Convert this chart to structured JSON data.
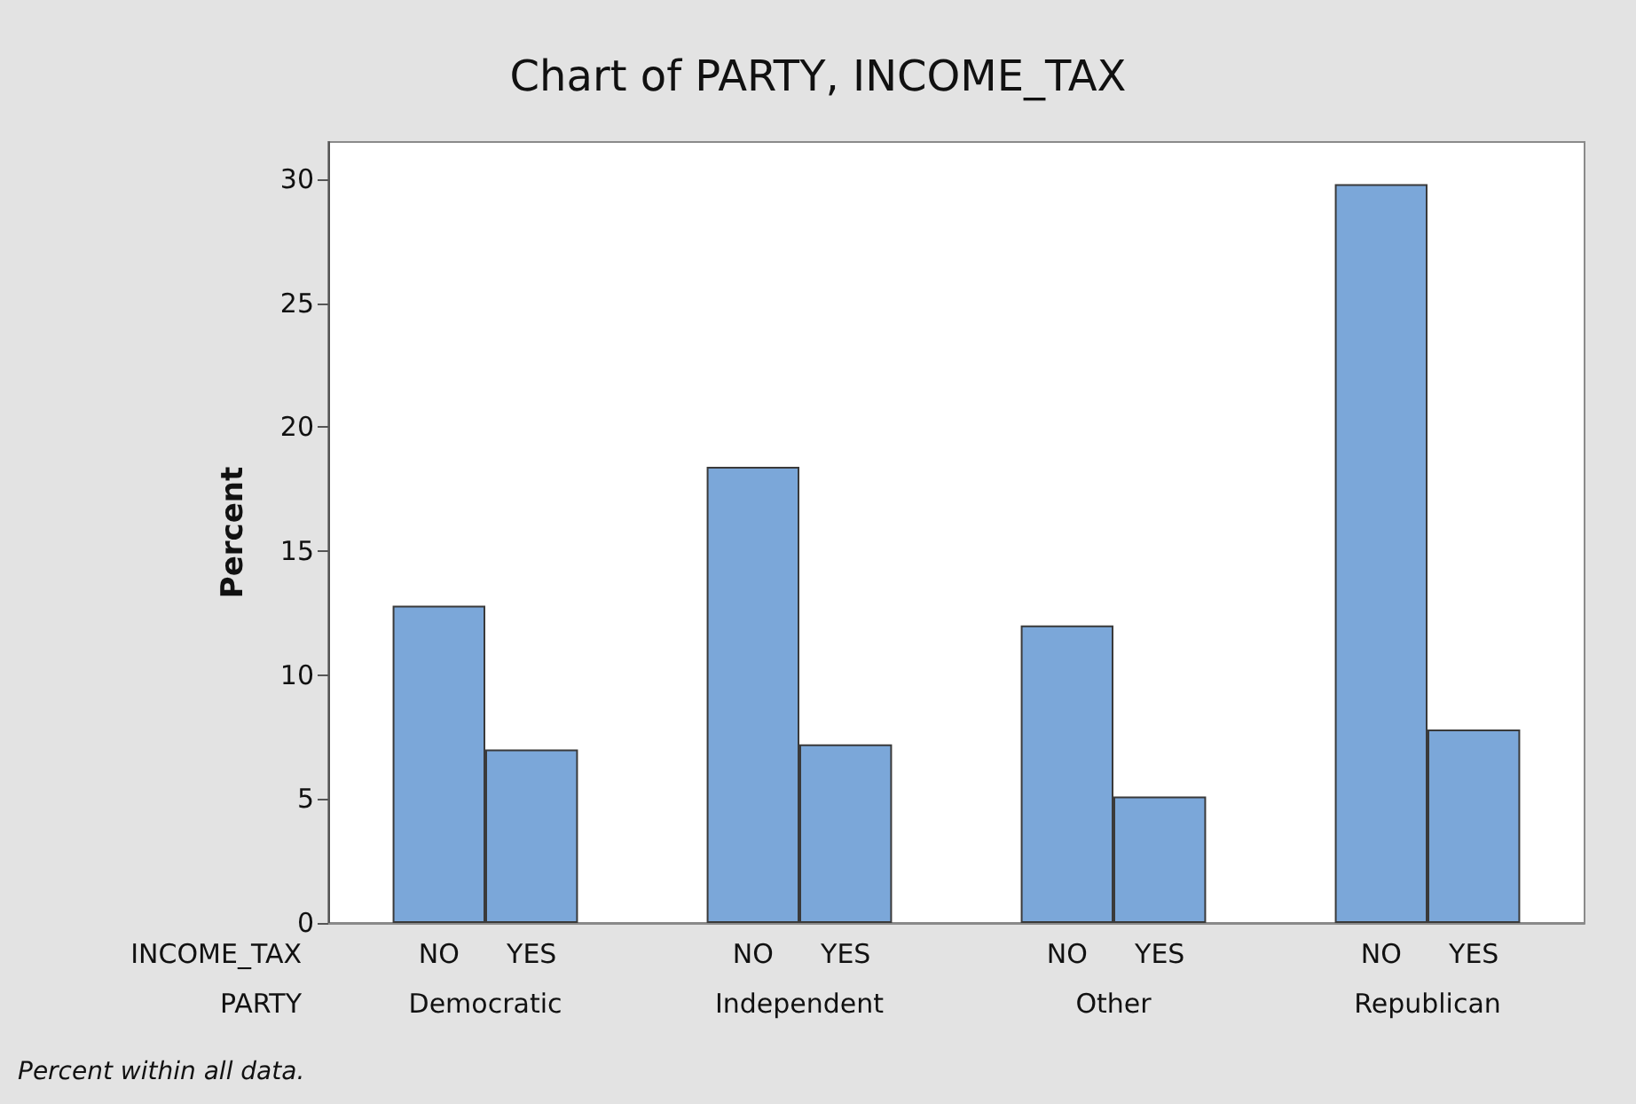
{
  "chart_data": {
    "type": "bar",
    "title": "Chart of PARTY, INCOME_TAX",
    "ylabel": "Percent",
    "categories": [
      "Democratic",
      "Independent",
      "Other",
      "Republican"
    ],
    "series": [
      {
        "name": "NO",
        "color": "#7ba7d9",
        "values": [
          12.8,
          18.4,
          12.0,
          29.8
        ]
      },
      {
        "name": "YES",
        "color": "#7ba7d9",
        "values": [
          7.0,
          7.2,
          5.1,
          7.8
        ]
      }
    ],
    "ylim": [
      0,
      31.5
    ],
    "yticks": [
      0,
      5,
      10,
      15,
      20,
      25,
      30
    ],
    "grid": false,
    "legend": false,
    "annotations": [
      "INCOME_TAX",
      "PARTY",
      "Percent within all data."
    ]
  }
}
